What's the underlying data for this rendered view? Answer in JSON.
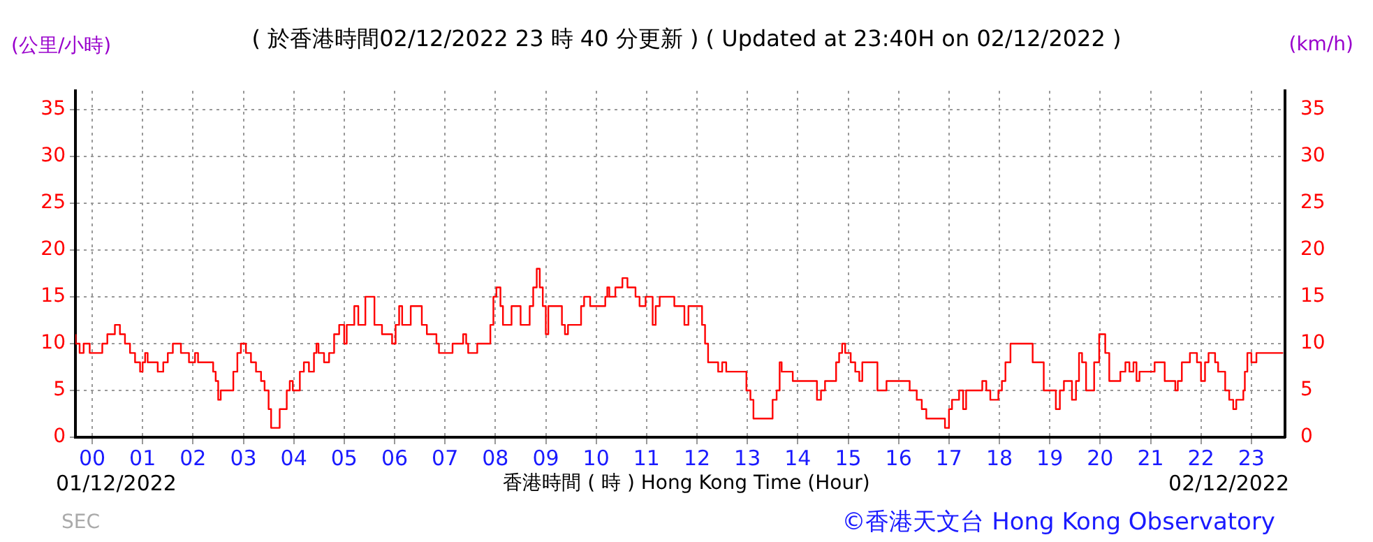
{
  "chart_data": {
    "type": "step",
    "title": "( 於香港時間02/12/2022 23 時 40 分更新 ) ( Updated at 23:40H on 02/12/2022 )",
    "xlabel": "香港時間 ( 時 ) Hong Kong Time (Hour)",
    "ylabel": "(公里/小時)",
    "y2label": "(km/h)",
    "annotations": [
      "01/12/2022",
      "02/12/2022",
      "SEC",
      "©香港天文台 Hong Kong Observatory"
    ],
    "x": [
      -0.33,
      -0.25,
      -0.17,
      -0.05,
      0.2,
      0.3,
      0.45,
      0.55,
      0.65,
      0.75,
      0.85,
      0.95,
      1.0,
      1.05,
      1.1,
      1.3,
      1.41,
      1.5,
      1.6,
      1.76,
      1.92,
      2.04,
      2.1,
      2.4,
      2.45,
      2.5,
      2.55,
      2.8,
      2.88,
      2.95,
      3.05,
      3.15,
      3.25,
      3.35,
      3.42,
      3.5,
      3.55,
      3.72,
      3.86,
      3.92,
      3.98,
      4.12,
      4.2,
      4.3,
      4.4,
      4.45,
      4.49,
      4.6,
      4.7,
      4.8,
      4.9,
      5.0,
      5.05,
      5.2,
      5.28,
      5.42,
      5.6,
      5.75,
      5.95,
      6.02,
      6.09,
      6.15,
      6.32,
      6.54,
      6.64,
      6.83,
      6.88,
      7.15,
      7.36,
      7.42,
      7.46,
      7.64,
      7.9,
      7.96,
      8.02,
      8.1,
      8.15,
      8.32,
      8.5,
      8.68,
      8.75,
      8.82,
      8.88,
      8.94,
      9.0,
      9.05,
      9.32,
      9.38,
      9.44,
      9.7,
      9.76,
      9.88,
      10.18,
      10.22,
      10.26,
      10.38,
      10.52,
      10.62,
      10.78,
      10.86,
      10.98,
      11.12,
      11.18,
      11.26,
      11.55,
      11.75,
      11.83,
      12.1,
      12.16,
      12.22,
      12.42,
      12.5,
      12.58,
      12.98,
      13.06,
      13.12,
      13.5,
      13.58,
      13.64,
      13.68,
      13.9,
      14.38,
      14.46,
      14.54,
      14.76,
      14.82,
      14.88,
      14.94,
      15.05,
      15.14,
      15.22,
      15.28,
      15.58,
      15.76,
      16.22,
      16.36,
      16.46,
      16.55,
      16.92,
      17.0,
      17.06,
      17.2,
      17.28,
      17.34,
      17.66,
      17.74,
      17.82,
      17.98,
      18.05,
      18.12,
      18.22,
      18.66,
      18.88,
      19.12,
      19.2,
      19.28,
      19.44,
      19.52,
      19.58,
      19.64,
      19.72,
      19.88,
      19.98,
      20.1,
      20.18,
      20.4,
      20.5,
      20.58,
      20.66,
      20.72,
      20.78,
      21.08,
      21.28,
      21.49,
      21.54,
      21.62,
      21.78,
      21.92,
      22.0,
      22.08,
      22.15,
      22.28,
      22.34,
      22.48,
      22.56,
      22.64,
      22.7,
      22.84,
      22.87,
      22.92,
      23.0,
      23.1,
      23.58,
      23.63
    ],
    "values": [
      11,
      10,
      9,
      10,
      9,
      10,
      11,
      12,
      11,
      10,
      9,
      8,
      7,
      8,
      9,
      8,
      7,
      8,
      9,
      10,
      9,
      8,
      9,
      8,
      7,
      6,
      4,
      5,
      7,
      9,
      10,
      9,
      8,
      7,
      6,
      5,
      3,
      1,
      3,
      5,
      6,
      5,
      7,
      8,
      7,
      9,
      10,
      9,
      8,
      9,
      11,
      12,
      10,
      12,
      14,
      12,
      15,
      12,
      11,
      10,
      12,
      14,
      12,
      14,
      12,
      11,
      10,
      9,
      10,
      11,
      10,
      9,
      10,
      12,
      15,
      16,
      14,
      12,
      14,
      12,
      14,
      16,
      18,
      16,
      14,
      11,
      14,
      12,
      11,
      12,
      14,
      15,
      14,
      15,
      16,
      15,
      16,
      17,
      16,
      15,
      14,
      15,
      12,
      14,
      15,
      14,
      12,
      14,
      12,
      10,
      8,
      7,
      8,
      7,
      5,
      4,
      2,
      4,
      5,
      8,
      7,
      6,
      4,
      5,
      6,
      8,
      9,
      10,
      9,
      8,
      7,
      6,
      8,
      5,
      6,
      5,
      4,
      3,
      2,
      1,
      3,
      4,
      5,
      3,
      5,
      6,
      5,
      4,
      5,
      6,
      8,
      10,
      8,
      5,
      3,
      5,
      6,
      4,
      6,
      9,
      8,
      5,
      8,
      11,
      9,
      6,
      7,
      8,
      7,
      8,
      6,
      7,
      8,
      6,
      5,
      6,
      8,
      9,
      8,
      6,
      8,
      9,
      8,
      7,
      5,
      4,
      3,
      4,
      5,
      7,
      9,
      8,
      9,
      9
    ],
    "color": "#ff0000",
    "xlim": [
      -0.333,
      23.667
    ],
    "xticks": [
      {
        "value": 0,
        "label": "00"
      },
      {
        "value": 1,
        "label": "01"
      },
      {
        "value": 2,
        "label": "02"
      },
      {
        "value": 3,
        "label": "03"
      },
      {
        "value": 4,
        "label": "04"
      },
      {
        "value": 5,
        "label": "05"
      },
      {
        "value": 6,
        "label": "06"
      },
      {
        "value": 7,
        "label": "07"
      },
      {
        "value": 8,
        "label": "08"
      },
      {
        "value": 9,
        "label": "09"
      },
      {
        "value": 10,
        "label": "10"
      },
      {
        "value": 11,
        "label": "11"
      },
      {
        "value": 12,
        "label": "12"
      },
      {
        "value": 13,
        "label": "13"
      },
      {
        "value": 14,
        "label": "14"
      },
      {
        "value": 15,
        "label": "15"
      },
      {
        "value": 16,
        "label": "16"
      },
      {
        "value": 17,
        "label": "17"
      },
      {
        "value": 18,
        "label": "18"
      },
      {
        "value": 19,
        "label": "19"
      },
      {
        "value": 20,
        "label": "20"
      },
      {
        "value": 21,
        "label": "21"
      },
      {
        "value": 22,
        "label": "22"
      },
      {
        "value": 23,
        "label": "23"
      }
    ],
    "ylim": [
      0,
      37
    ],
    "yticks": [
      0,
      5,
      10,
      15,
      20,
      25,
      30,
      35
    ],
    "y2lim": [
      0,
      37
    ],
    "y2ticks": [
      0,
      5,
      10,
      15,
      20,
      25,
      30,
      35
    ],
    "grid": true,
    "legend": false,
    "marker": "none",
    "line_style": "solid"
  }
}
